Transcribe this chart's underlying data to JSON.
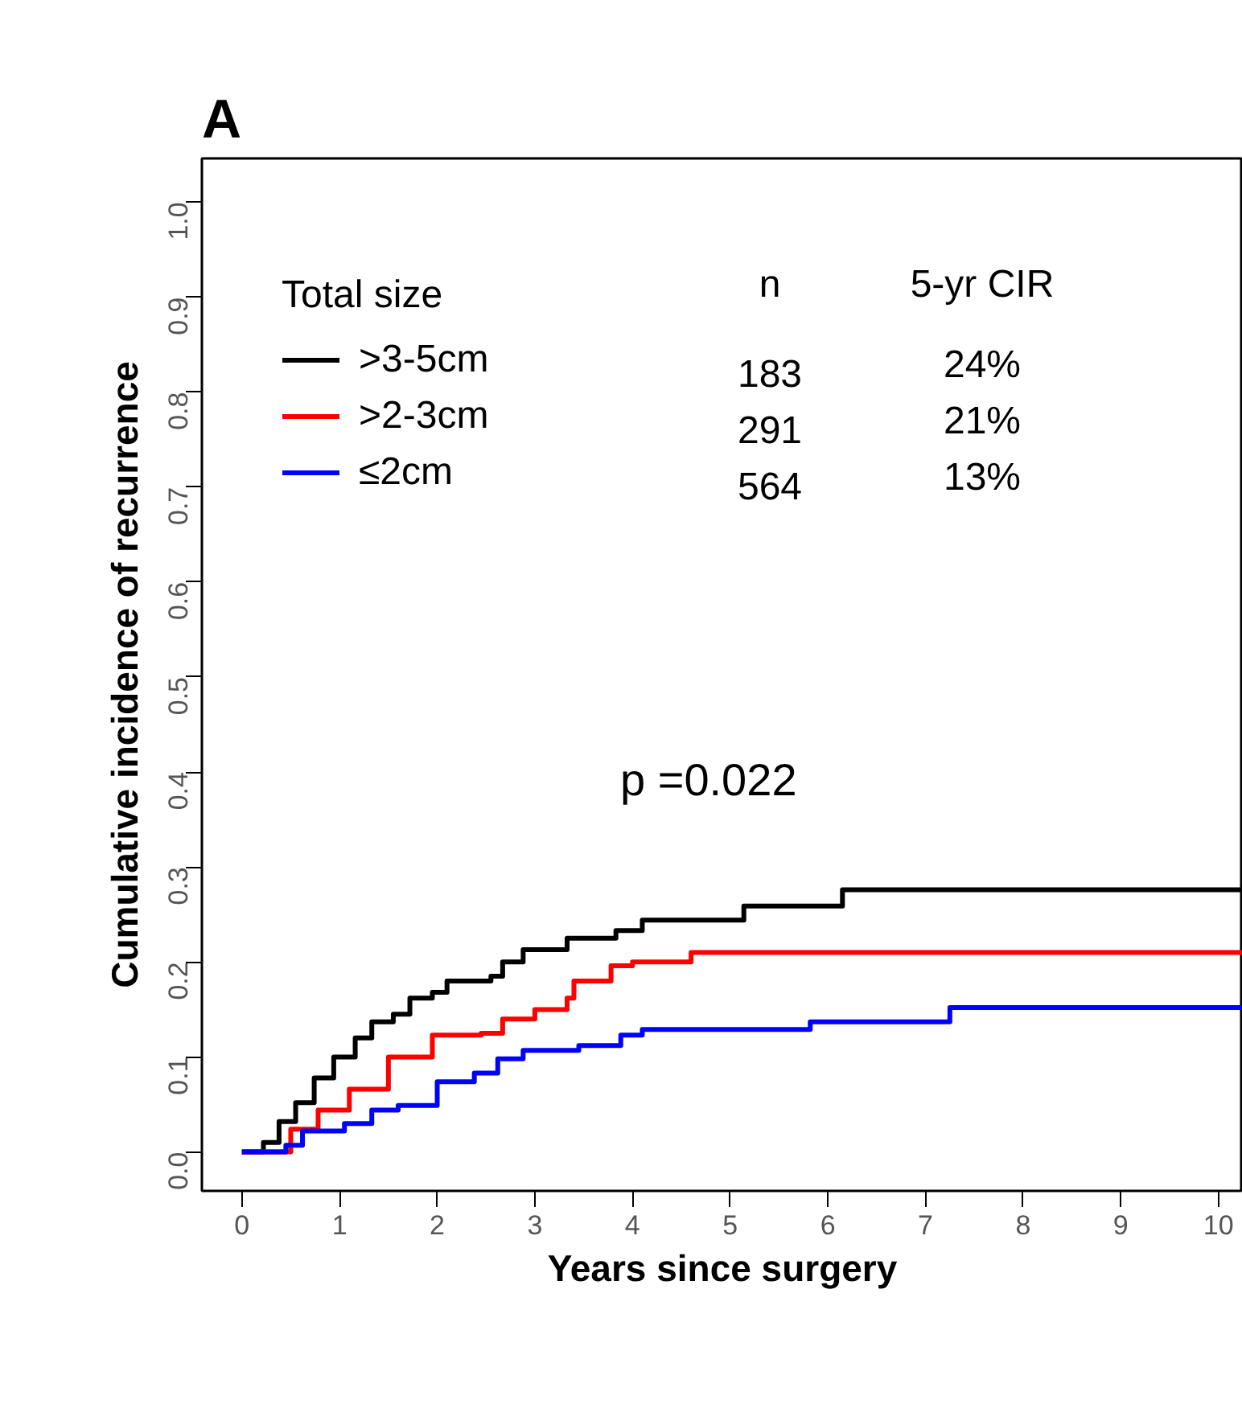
{
  "chart_data": {
    "type": "step",
    "title": "A",
    "xlabel": "Years since surgery",
    "ylabel": "Cumulative incidence of recurrence",
    "legend_title": "Total size",
    "xlim": [
      -0.41,
      10.25
    ],
    "ylim": [
      -0.041,
      1.046
    ],
    "xticks": [
      0,
      1,
      2,
      3,
      4,
      5,
      6,
      7,
      8,
      9,
      10
    ],
    "yticks": [
      {
        "value": 0,
        "label": "0.0"
      },
      0.1,
      0.2,
      0.3,
      0.4,
      0.5,
      0.6,
      0.7,
      0.8,
      0.9,
      {
        "value": 1,
        "label": "1.0"
      }
    ],
    "grid": false,
    "legend": "top left",
    "line_style": "solid",
    "marker": "none",
    "series": [
      {
        "name": ">3-5cm",
        "color": "#000000",
        "x": [
          0,
          0.22,
          0.38,
          0.55,
          0.74,
          0.94,
          1.16,
          1.33,
          1.55,
          1.72,
          1.95,
          2.1,
          2.55,
          2.67,
          2.88,
          3.33,
          3.83,
          4.1,
          5.14,
          6.15,
          10.25
        ],
        "values": [
          0,
          0.01,
          0.032,
          0.052,
          0.078,
          0.1,
          0.12,
          0.137,
          0.145,
          0.162,
          0.168,
          0.18,
          0.185,
          0.2,
          0.213,
          0.225,
          0.233,
          0.244,
          0.259,
          0.276,
          0.276
        ]
      },
      {
        "name": ">2-3cm",
        "color": "#ff0000",
        "x": [
          0,
          0.5,
          0.78,
          1.1,
          1.5,
          1.95,
          2.45,
          2.67,
          3.0,
          3.33,
          3.4,
          3.78,
          4.0,
          4.6,
          10.25
        ],
        "values": [
          0,
          0.024,
          0.044,
          0.066,
          0.1,
          0.123,
          0.125,
          0.14,
          0.15,
          0.162,
          0.18,
          0.196,
          0.2,
          0.21,
          0.21
        ]
      },
      {
        "name": "≤2cm",
        "color": "#0000ff",
        "x": [
          0,
          0.45,
          0.62,
          1.05,
          1.33,
          1.6,
          2.0,
          2.38,
          2.62,
          2.88,
          3.45,
          3.88,
          4.1,
          5.82,
          7.25,
          10.25
        ],
        "values": [
          0,
          0.007,
          0.022,
          0.03,
          0.044,
          0.049,
          0.074,
          0.083,
          0.098,
          0.107,
          0.112,
          0.123,
          0.129,
          0.137,
          0.152,
          0.152
        ]
      }
    ],
    "annotations": [
      "p =0.022",
      "n",
      "5-yr CIR",
      "183",
      "24%",
      "291",
      "21%",
      "564",
      "13%"
    ]
  }
}
